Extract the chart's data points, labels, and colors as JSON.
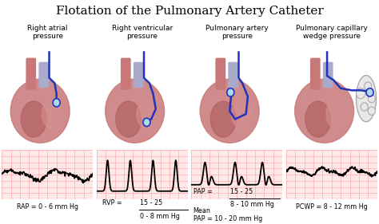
{
  "title": "Flotation of the Pulmonary Artery Catheter",
  "title_fontsize": 11,
  "bg_color": "#ffffff",
  "grid_color": "#ffaaaa",
  "sections": [
    {
      "label": "Right atrial\npressure",
      "waveform_type": "RAP",
      "value_simple": "RAP = 0 - 6 mm Hg"
    },
    {
      "label": "Right ventricular\npressure",
      "waveform_type": "RVP",
      "value_simple": null
    },
    {
      "label": "Pulmonary artery\npressure",
      "waveform_type": "PAP",
      "value_simple": null
    },
    {
      "label": "Pulmonary capillary\nwedge pressure",
      "waveform_type": "PCWP",
      "value_simple": "PCWP = 8 - 12 mm Hg"
    }
  ],
  "heart_color": "#c87878",
  "lv_color": "#b06060",
  "rv_color": "#d49090",
  "vessel_color": "#c87878",
  "blue_color": "#2233bb",
  "label_fontsize": 6.5,
  "value_fontsize": 5.8
}
